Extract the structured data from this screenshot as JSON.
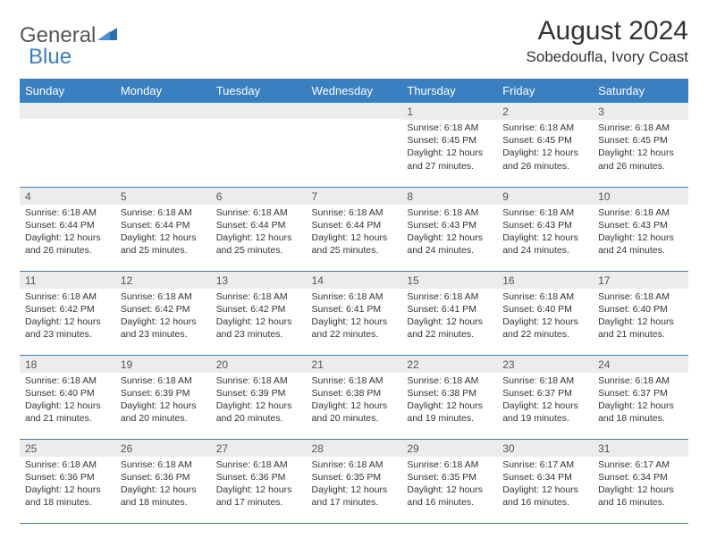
{
  "brand": {
    "part1": "General",
    "part2": "Blue"
  },
  "title": "August 2024",
  "location": "Sobedoufla, Ivory Coast",
  "colors": {
    "header_bg": "#3a7fbf",
    "header_fg": "#ffffff",
    "daynum_bg": "#ececec",
    "text": "#333333",
    "rule": "#3a7fbf"
  },
  "weekdays": [
    "Sunday",
    "Monday",
    "Tuesday",
    "Wednesday",
    "Thursday",
    "Friday",
    "Saturday"
  ],
  "weeks": [
    [
      {
        "n": "",
        "lines": []
      },
      {
        "n": "",
        "lines": []
      },
      {
        "n": "",
        "lines": []
      },
      {
        "n": "",
        "lines": []
      },
      {
        "n": "1",
        "lines": [
          "Sunrise: 6:18 AM",
          "Sunset: 6:45 PM",
          "Daylight: 12 hours and 27 minutes."
        ]
      },
      {
        "n": "2",
        "lines": [
          "Sunrise: 6:18 AM",
          "Sunset: 6:45 PM",
          "Daylight: 12 hours and 26 minutes."
        ]
      },
      {
        "n": "3",
        "lines": [
          "Sunrise: 6:18 AM",
          "Sunset: 6:45 PM",
          "Daylight: 12 hours and 26 minutes."
        ]
      }
    ],
    [
      {
        "n": "4",
        "lines": [
          "Sunrise: 6:18 AM",
          "Sunset: 6:44 PM",
          "Daylight: 12 hours and 26 minutes."
        ]
      },
      {
        "n": "5",
        "lines": [
          "Sunrise: 6:18 AM",
          "Sunset: 6:44 PM",
          "Daylight: 12 hours and 25 minutes."
        ]
      },
      {
        "n": "6",
        "lines": [
          "Sunrise: 6:18 AM",
          "Sunset: 6:44 PM",
          "Daylight: 12 hours and 25 minutes."
        ]
      },
      {
        "n": "7",
        "lines": [
          "Sunrise: 6:18 AM",
          "Sunset: 6:44 PM",
          "Daylight: 12 hours and 25 minutes."
        ]
      },
      {
        "n": "8",
        "lines": [
          "Sunrise: 6:18 AM",
          "Sunset: 6:43 PM",
          "Daylight: 12 hours and 24 minutes."
        ]
      },
      {
        "n": "9",
        "lines": [
          "Sunrise: 6:18 AM",
          "Sunset: 6:43 PM",
          "Daylight: 12 hours and 24 minutes."
        ]
      },
      {
        "n": "10",
        "lines": [
          "Sunrise: 6:18 AM",
          "Sunset: 6:43 PM",
          "Daylight: 12 hours and 24 minutes."
        ]
      }
    ],
    [
      {
        "n": "11",
        "lines": [
          "Sunrise: 6:18 AM",
          "Sunset: 6:42 PM",
          "Daylight: 12 hours and 23 minutes."
        ]
      },
      {
        "n": "12",
        "lines": [
          "Sunrise: 6:18 AM",
          "Sunset: 6:42 PM",
          "Daylight: 12 hours and 23 minutes."
        ]
      },
      {
        "n": "13",
        "lines": [
          "Sunrise: 6:18 AM",
          "Sunset: 6:42 PM",
          "Daylight: 12 hours and 23 minutes."
        ]
      },
      {
        "n": "14",
        "lines": [
          "Sunrise: 6:18 AM",
          "Sunset: 6:41 PM",
          "Daylight: 12 hours and 22 minutes."
        ]
      },
      {
        "n": "15",
        "lines": [
          "Sunrise: 6:18 AM",
          "Sunset: 6:41 PM",
          "Daylight: 12 hours and 22 minutes."
        ]
      },
      {
        "n": "16",
        "lines": [
          "Sunrise: 6:18 AM",
          "Sunset: 6:40 PM",
          "Daylight: 12 hours and 22 minutes."
        ]
      },
      {
        "n": "17",
        "lines": [
          "Sunrise: 6:18 AM",
          "Sunset: 6:40 PM",
          "Daylight: 12 hours and 21 minutes."
        ]
      }
    ],
    [
      {
        "n": "18",
        "lines": [
          "Sunrise: 6:18 AM",
          "Sunset: 6:40 PM",
          "Daylight: 12 hours and 21 minutes."
        ]
      },
      {
        "n": "19",
        "lines": [
          "Sunrise: 6:18 AM",
          "Sunset: 6:39 PM",
          "Daylight: 12 hours and 20 minutes."
        ]
      },
      {
        "n": "20",
        "lines": [
          "Sunrise: 6:18 AM",
          "Sunset: 6:39 PM",
          "Daylight: 12 hours and 20 minutes."
        ]
      },
      {
        "n": "21",
        "lines": [
          "Sunrise: 6:18 AM",
          "Sunset: 6:38 PM",
          "Daylight: 12 hours and 20 minutes."
        ]
      },
      {
        "n": "22",
        "lines": [
          "Sunrise: 6:18 AM",
          "Sunset: 6:38 PM",
          "Daylight: 12 hours and 19 minutes."
        ]
      },
      {
        "n": "23",
        "lines": [
          "Sunrise: 6:18 AM",
          "Sunset: 6:37 PM",
          "Daylight: 12 hours and 19 minutes."
        ]
      },
      {
        "n": "24",
        "lines": [
          "Sunrise: 6:18 AM",
          "Sunset: 6:37 PM",
          "Daylight: 12 hours and 18 minutes."
        ]
      }
    ],
    [
      {
        "n": "25",
        "lines": [
          "Sunrise: 6:18 AM",
          "Sunset: 6:36 PM",
          "Daylight: 12 hours and 18 minutes."
        ]
      },
      {
        "n": "26",
        "lines": [
          "Sunrise: 6:18 AM",
          "Sunset: 6:36 PM",
          "Daylight: 12 hours and 18 minutes."
        ]
      },
      {
        "n": "27",
        "lines": [
          "Sunrise: 6:18 AM",
          "Sunset: 6:36 PM",
          "Daylight: 12 hours and 17 minutes."
        ]
      },
      {
        "n": "28",
        "lines": [
          "Sunrise: 6:18 AM",
          "Sunset: 6:35 PM",
          "Daylight: 12 hours and 17 minutes."
        ]
      },
      {
        "n": "29",
        "lines": [
          "Sunrise: 6:18 AM",
          "Sunset: 6:35 PM",
          "Daylight: 12 hours and 16 minutes."
        ]
      },
      {
        "n": "30",
        "lines": [
          "Sunrise: 6:17 AM",
          "Sunset: 6:34 PM",
          "Daylight: 12 hours and 16 minutes."
        ]
      },
      {
        "n": "31",
        "lines": [
          "Sunrise: 6:17 AM",
          "Sunset: 6:34 PM",
          "Daylight: 12 hours and 16 minutes."
        ]
      }
    ]
  ]
}
